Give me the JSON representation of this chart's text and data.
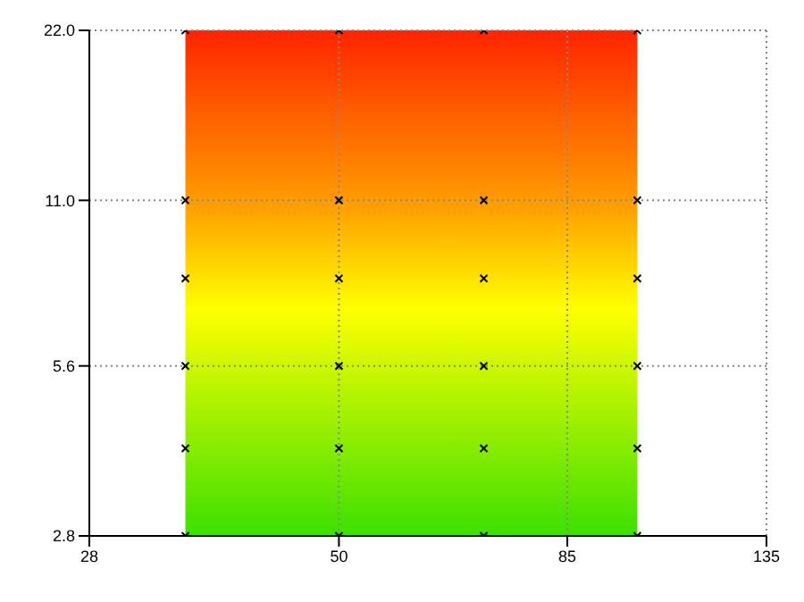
{
  "chart_data": {
    "type": "scatter",
    "log": "xy",
    "grid": true,
    "marker": "cross",
    "x": [
      35,
      50,
      70,
      100,
      35,
      50,
      70,
      100,
      35,
      50,
      70,
      100,
      35,
      50,
      70,
      100,
      35,
      50,
      70,
      100,
      35,
      50,
      70,
      100
    ],
    "series": [
      {
        "color": "#000000",
        "values": [
          2.8,
          2.8,
          2.8,
          2.8,
          4,
          4,
          4,
          4,
          5.6,
          5.6,
          5.6,
          5.6,
          8,
          8,
          8,
          8,
          11,
          11,
          11,
          11,
          22,
          22,
          22,
          22
        ]
      }
    ],
    "bands": [
      {
        "axis": "x",
        "from": 35,
        "to": 100
      }
    ],
    "xlim": [
      28,
      135
    ],
    "xticks": [
      28,
      50,
      85,
      135
    ],
    "ylim": [
      2.8,
      22
    ],
    "yticks": [
      {
        "value": 2.8,
        "label": "2.8"
      },
      {
        "value": 5.6,
        "label": "5.6"
      },
      {
        "value": 11,
        "label": "11.0"
      },
      {
        "value": 22,
        "label": "22.0"
      }
    ]
  }
}
